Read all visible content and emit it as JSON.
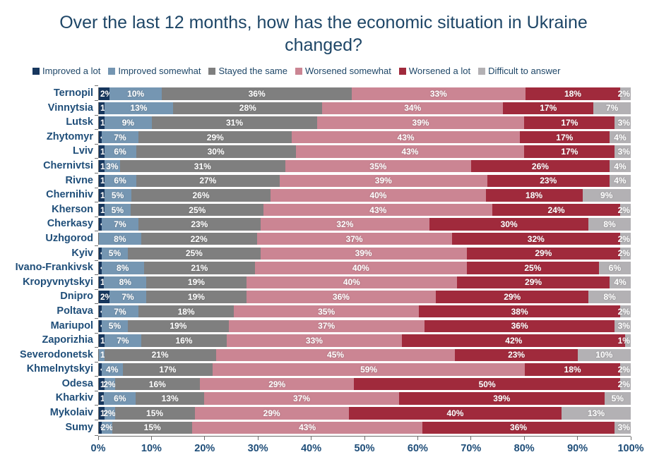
{
  "colors": {
    "title_text": "#1e4667",
    "category_text": "#1f4e79",
    "axis_line": "#6e6e6e",
    "bar_value_text": "#ffffff"
  },
  "chart_data": {
    "type": "bar",
    "subtype": "horizontal-stacked-100pct",
    "title": "Over the last 12 months, how has the economic situation in Ukraine changed?",
    "legend_position": "top",
    "grid": false,
    "x_axis": {
      "range": [
        0,
        100
      ],
      "ticks": [
        "0%",
        "10%",
        "20%",
        "30%",
        "40%",
        "50%",
        "60%",
        "70%",
        "80%",
        "90%",
        "100%"
      ]
    },
    "series": [
      {
        "name": "Improved a lot",
        "color": "#17375e"
      },
      {
        "name": "Improved somewhat",
        "color": "#7596b2"
      },
      {
        "name": "Stayed the same",
        "color": "#7f7f7f"
      },
      {
        "name": "Worsened somewhat",
        "color": "#cb8593"
      },
      {
        "name": "Worsened a lot",
        "color": "#a02a3c"
      },
      {
        "name": "Difficult to answer",
        "color": "#b3b1b4"
      }
    ],
    "value_unit": "%",
    "rows": [
      {
        "city": "Ternopil",
        "values": [
          "2",
          "10",
          "36",
          "33",
          "18",
          "2"
        ]
      },
      {
        "city": "Vinnytsia",
        "values": [
          "1",
          "13",
          "28",
          "34",
          "17",
          "7"
        ]
      },
      {
        "city": "Lutsk",
        "values": [
          "1",
          "9",
          "31",
          "39",
          "17",
          "3"
        ]
      },
      {
        "city": "Zhytomyr",
        "values": [
          "<1",
          "7",
          "29",
          "43",
          "17",
          "4"
        ]
      },
      {
        "city": "Lviv",
        "values": [
          "1",
          "6",
          "30",
          "43",
          "17",
          "3"
        ]
      },
      {
        "city": "Chernivtsi",
        "values": [
          "1",
          "3",
          "31",
          "35",
          "26",
          "4"
        ]
      },
      {
        "city": "Rivne",
        "values": [
          "1",
          "6",
          "27",
          "39",
          "23",
          "4"
        ]
      },
      {
        "city": "Chernihiv",
        "values": [
          "1",
          "5",
          "26",
          "40",
          "18",
          "9"
        ]
      },
      {
        "city": "Kherson",
        "values": [
          "1",
          "5",
          "25",
          "43",
          "24",
          "2"
        ]
      },
      {
        "city": "Cherkasy",
        "values": [
          "<1",
          "7",
          "23",
          "32",
          "30",
          "8"
        ]
      },
      {
        "city": "Uzhgorod",
        "values": [
          null,
          "8",
          "22",
          "37",
          "32",
          "2"
        ]
      },
      {
        "city": "Kyiv",
        "values": [
          "<1",
          "5",
          "25",
          "39",
          "29",
          "2"
        ]
      },
      {
        "city": "Ivano-Frankivsk",
        "values": [
          "<1",
          "8",
          "21",
          "40",
          "25",
          "6"
        ]
      },
      {
        "city": "Kropyvnytskyi",
        "values": [
          "1",
          "8",
          "19",
          "40",
          "29",
          "4"
        ]
      },
      {
        "city": "Dnipro",
        "values": [
          "2",
          "7",
          "19",
          "36",
          "29",
          "8"
        ]
      },
      {
        "city": "Poltava",
        "values": [
          "<1",
          "7",
          "18",
          "35",
          "38",
          "2"
        ]
      },
      {
        "city": "Mariupol",
        "values": [
          "<1",
          "5",
          "19",
          "37",
          "36",
          "3"
        ]
      },
      {
        "city": "Zaporizhia",
        "values": [
          "1",
          "7",
          "16",
          "33",
          "42",
          "1"
        ]
      },
      {
        "city": "Severodonetsk",
        "values": [
          null,
          "1",
          "21",
          "45",
          "23",
          "10"
        ]
      },
      {
        "city": "Khmelnytskyi",
        "values": [
          "<1",
          "4",
          "17",
          "59",
          "18",
          "2"
        ]
      },
      {
        "city": "Odesa",
        "values": [
          "1",
          "2",
          "16",
          "29",
          "50",
          "2"
        ]
      },
      {
        "city": "Kharkiv",
        "values": [
          "1",
          "6",
          "13",
          "37",
          "39",
          "5"
        ]
      },
      {
        "city": "Mykolaiv",
        "values": [
          "1",
          "2",
          "15",
          "29",
          "40",
          "13"
        ]
      },
      {
        "city": "Sumy",
        "values": [
          "<1",
          "2",
          "15",
          "43",
          "36",
          "3"
        ]
      }
    ]
  }
}
